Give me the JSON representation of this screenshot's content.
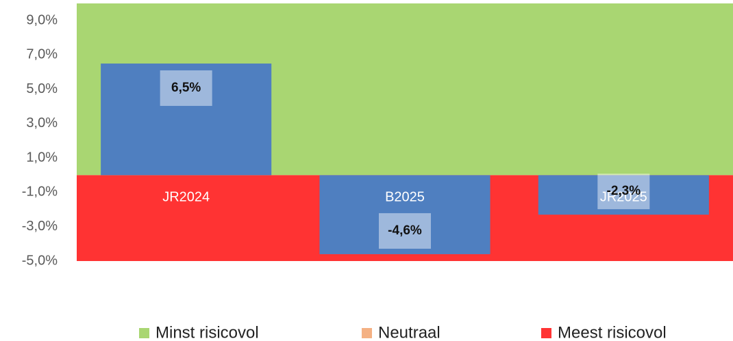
{
  "chart_data": {
    "type": "bar",
    "categories": [
      "JR2024",
      "B2025",
      "JR2025"
    ],
    "values": [
      6.5,
      -4.6,
      -2.3
    ],
    "value_labels": [
      "6,5%",
      "-4,6%",
      "-2,3%"
    ],
    "color": "#4f7fc0",
    "bands": [
      {
        "name": "Minst risicovol",
        "color": "#a9d672",
        "value": 10
      },
      {
        "name": "Neutraal",
        "color": "#f4b183",
        "value": 0
      },
      {
        "name": "Meest risicovol",
        "color": "#ff3333",
        "value": -5
      }
    ],
    "ylim": [
      -5,
      10
    ],
    "yticks": [
      {
        "value": -5,
        "label": "-5,0%"
      },
      {
        "value": -3,
        "label": "-3,0%"
      },
      {
        "value": -1,
        "label": "-1,0%"
      },
      {
        "value": 1,
        "label": "1,0%"
      },
      {
        "value": 3,
        "label": "3,0%"
      },
      {
        "value": 5,
        "label": "5,0%"
      },
      {
        "value": 7,
        "label": "7,0%"
      },
      {
        "value": 9,
        "label": "9,0%"
      }
    ]
  }
}
